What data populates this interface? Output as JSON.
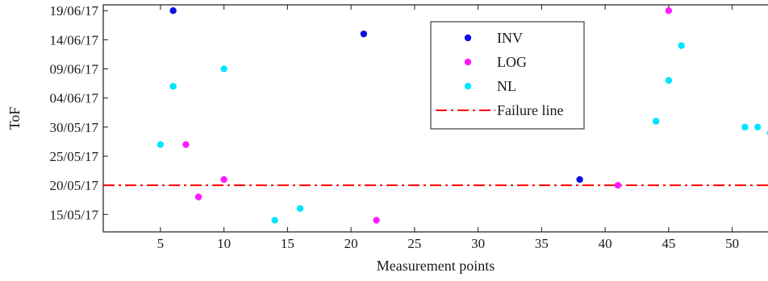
{
  "chart_data": {
    "type": "scatter",
    "title": "",
    "xlabel": "Measurement points",
    "ylabel": "ToF",
    "xlim": [
      0.5,
      53
    ],
    "ylim": [
      "12/05/17",
      "20/06/17"
    ],
    "x_ticks": [
      5,
      10,
      15,
      20,
      25,
      30,
      35,
      40,
      45,
      50
    ],
    "y_ticks": [
      "15/05/17",
      "20/05/17",
      "25/05/17",
      "30/05/17",
      "04/06/17",
      "09/06/17",
      "14/06/17",
      "19/06/17"
    ],
    "grid": false,
    "legend_position": "top-center",
    "series": [
      {
        "name": "INV",
        "color": "#1010e0",
        "points": [
          {
            "x": 6,
            "y": "19/06/17"
          },
          {
            "x": 21,
            "y": "15/06/17"
          },
          {
            "x": 38,
            "y": "21/05/17"
          }
        ]
      },
      {
        "name": "LOG",
        "color": "#ff1aff",
        "points": [
          {
            "x": 7,
            "y": "27/05/17"
          },
          {
            "x": 8,
            "y": "18/05/17"
          },
          {
            "x": 10,
            "y": "21/05/17"
          },
          {
            "x": 22,
            "y": "14/05/17"
          },
          {
            "x": 41,
            "y": "20/05/17"
          },
          {
            "x": 45,
            "y": "19/06/17"
          }
        ]
      },
      {
        "name": "NL",
        "color": "#00e5ff",
        "points": [
          {
            "x": 5,
            "y": "27/05/17"
          },
          {
            "x": 6,
            "y": "06/06/17"
          },
          {
            "x": 10,
            "y": "09/06/17"
          },
          {
            "x": 14,
            "y": "14/05/17"
          },
          {
            "x": 16,
            "y": "16/05/17"
          },
          {
            "x": 44,
            "y": "31/05/17"
          },
          {
            "x": 45,
            "y": "07/06/17"
          },
          {
            "x": 46,
            "y": "13/06/17"
          },
          {
            "x": 51,
            "y": "30/05/17"
          },
          {
            "x": 52,
            "y": "30/05/17"
          },
          {
            "x": 53,
            "y": "29/05/17"
          }
        ]
      }
    ],
    "reference_lines": [
      {
        "name": "Failure line",
        "y": "20/05/17",
        "color": "#ff0000",
        "style": "dash-dot"
      }
    ]
  }
}
